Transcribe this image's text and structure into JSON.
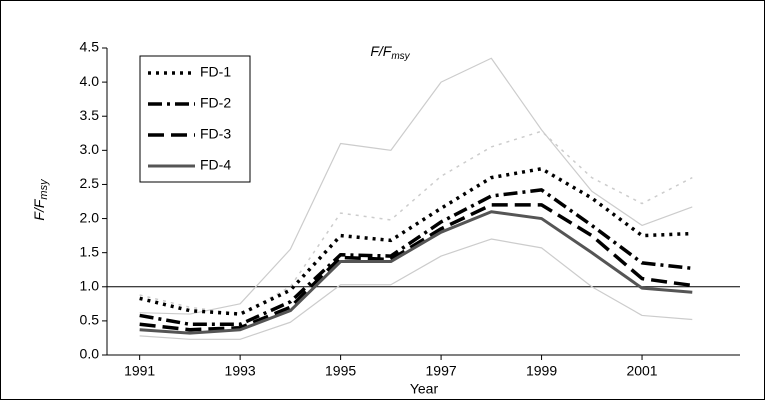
{
  "chart_data": {
    "type": "line",
    "title": [
      "F/F",
      "msy"
    ],
    "y_label": [
      "F/F",
      "msy"
    ],
    "x_label": "Year",
    "x": [
      1991,
      1992,
      1993,
      1994,
      1995,
      1996,
      1997,
      1998,
      1999,
      2000,
      2001,
      2002
    ],
    "xlim": [
      1990.35,
      2002.95
    ],
    "xticks": [
      1991,
      1993,
      1995,
      1997,
      1999,
      2001
    ],
    "ylim": [
      0,
      4.5
    ],
    "yticks": [
      {
        "value": 0,
        "label": "0.0"
      },
      {
        "value": 0.5,
        "label": "0.5"
      },
      {
        "value": 1,
        "label": "1.0"
      },
      {
        "value": 1.5,
        "label": "1.5"
      },
      {
        "value": 2,
        "label": "2.0"
      },
      {
        "value": 2.5,
        "label": "2.5"
      },
      {
        "value": 3,
        "label": "3.0"
      },
      {
        "value": 3.5,
        "label": "3.5"
      },
      {
        "value": 4,
        "label": "4.0"
      },
      {
        "value": 4.5,
        "label": "4.5"
      }
    ],
    "reference_line": 1,
    "series": [
      {
        "color": "#cccccc",
        "dash": "solid",
        "width": 1.2,
        "values": [
          0.62,
          0.6,
          0.75,
          1.55,
          3.1,
          3.0,
          4.0,
          4.35,
          3.3,
          2.4,
          1.9,
          2.17
        ]
      },
      {
        "color": "#cccccc",
        "dash": "dotted",
        "width": 1.5,
        "values": [
          0.88,
          0.7,
          0.6,
          1.0,
          2.08,
          1.98,
          2.62,
          3.05,
          3.28,
          2.6,
          2.22,
          2.6
        ]
      },
      {
        "color": "#cccccc",
        "dash": "solid",
        "width": 1.2,
        "values": [
          0.28,
          0.23,
          0.23,
          0.48,
          1.03,
          1.03,
          1.45,
          1.7,
          1.57,
          1.0,
          0.58,
          0.52
        ]
      },
      {
        "name": "FD-1",
        "color": "#000000",
        "dash": "dotted",
        "width": 3.5,
        "values": [
          0.83,
          0.65,
          0.6,
          0.95,
          1.75,
          1.68,
          2.15,
          2.6,
          2.73,
          2.3,
          1.75,
          1.78
        ]
      },
      {
        "name": "FD-2",
        "color": "#000000",
        "dash": "dashdot",
        "width": 3.5,
        "values": [
          0.58,
          0.45,
          0.45,
          0.78,
          1.47,
          1.45,
          1.95,
          2.33,
          2.42,
          1.9,
          1.35,
          1.27
        ]
      },
      {
        "name": "FD-3",
        "color": "#000000",
        "dash": "dashed",
        "width": 3.5,
        "values": [
          0.45,
          0.37,
          0.4,
          0.7,
          1.43,
          1.4,
          1.85,
          2.2,
          2.2,
          1.75,
          1.12,
          1.02
        ]
      },
      {
        "name": "FD-4",
        "color": "#555555",
        "dash": "solid",
        "width": 3,
        "values": [
          0.37,
          0.32,
          0.37,
          0.65,
          1.37,
          1.37,
          1.8,
          2.1,
          2.0,
          1.5,
          0.98,
          0.92
        ]
      }
    ]
  }
}
